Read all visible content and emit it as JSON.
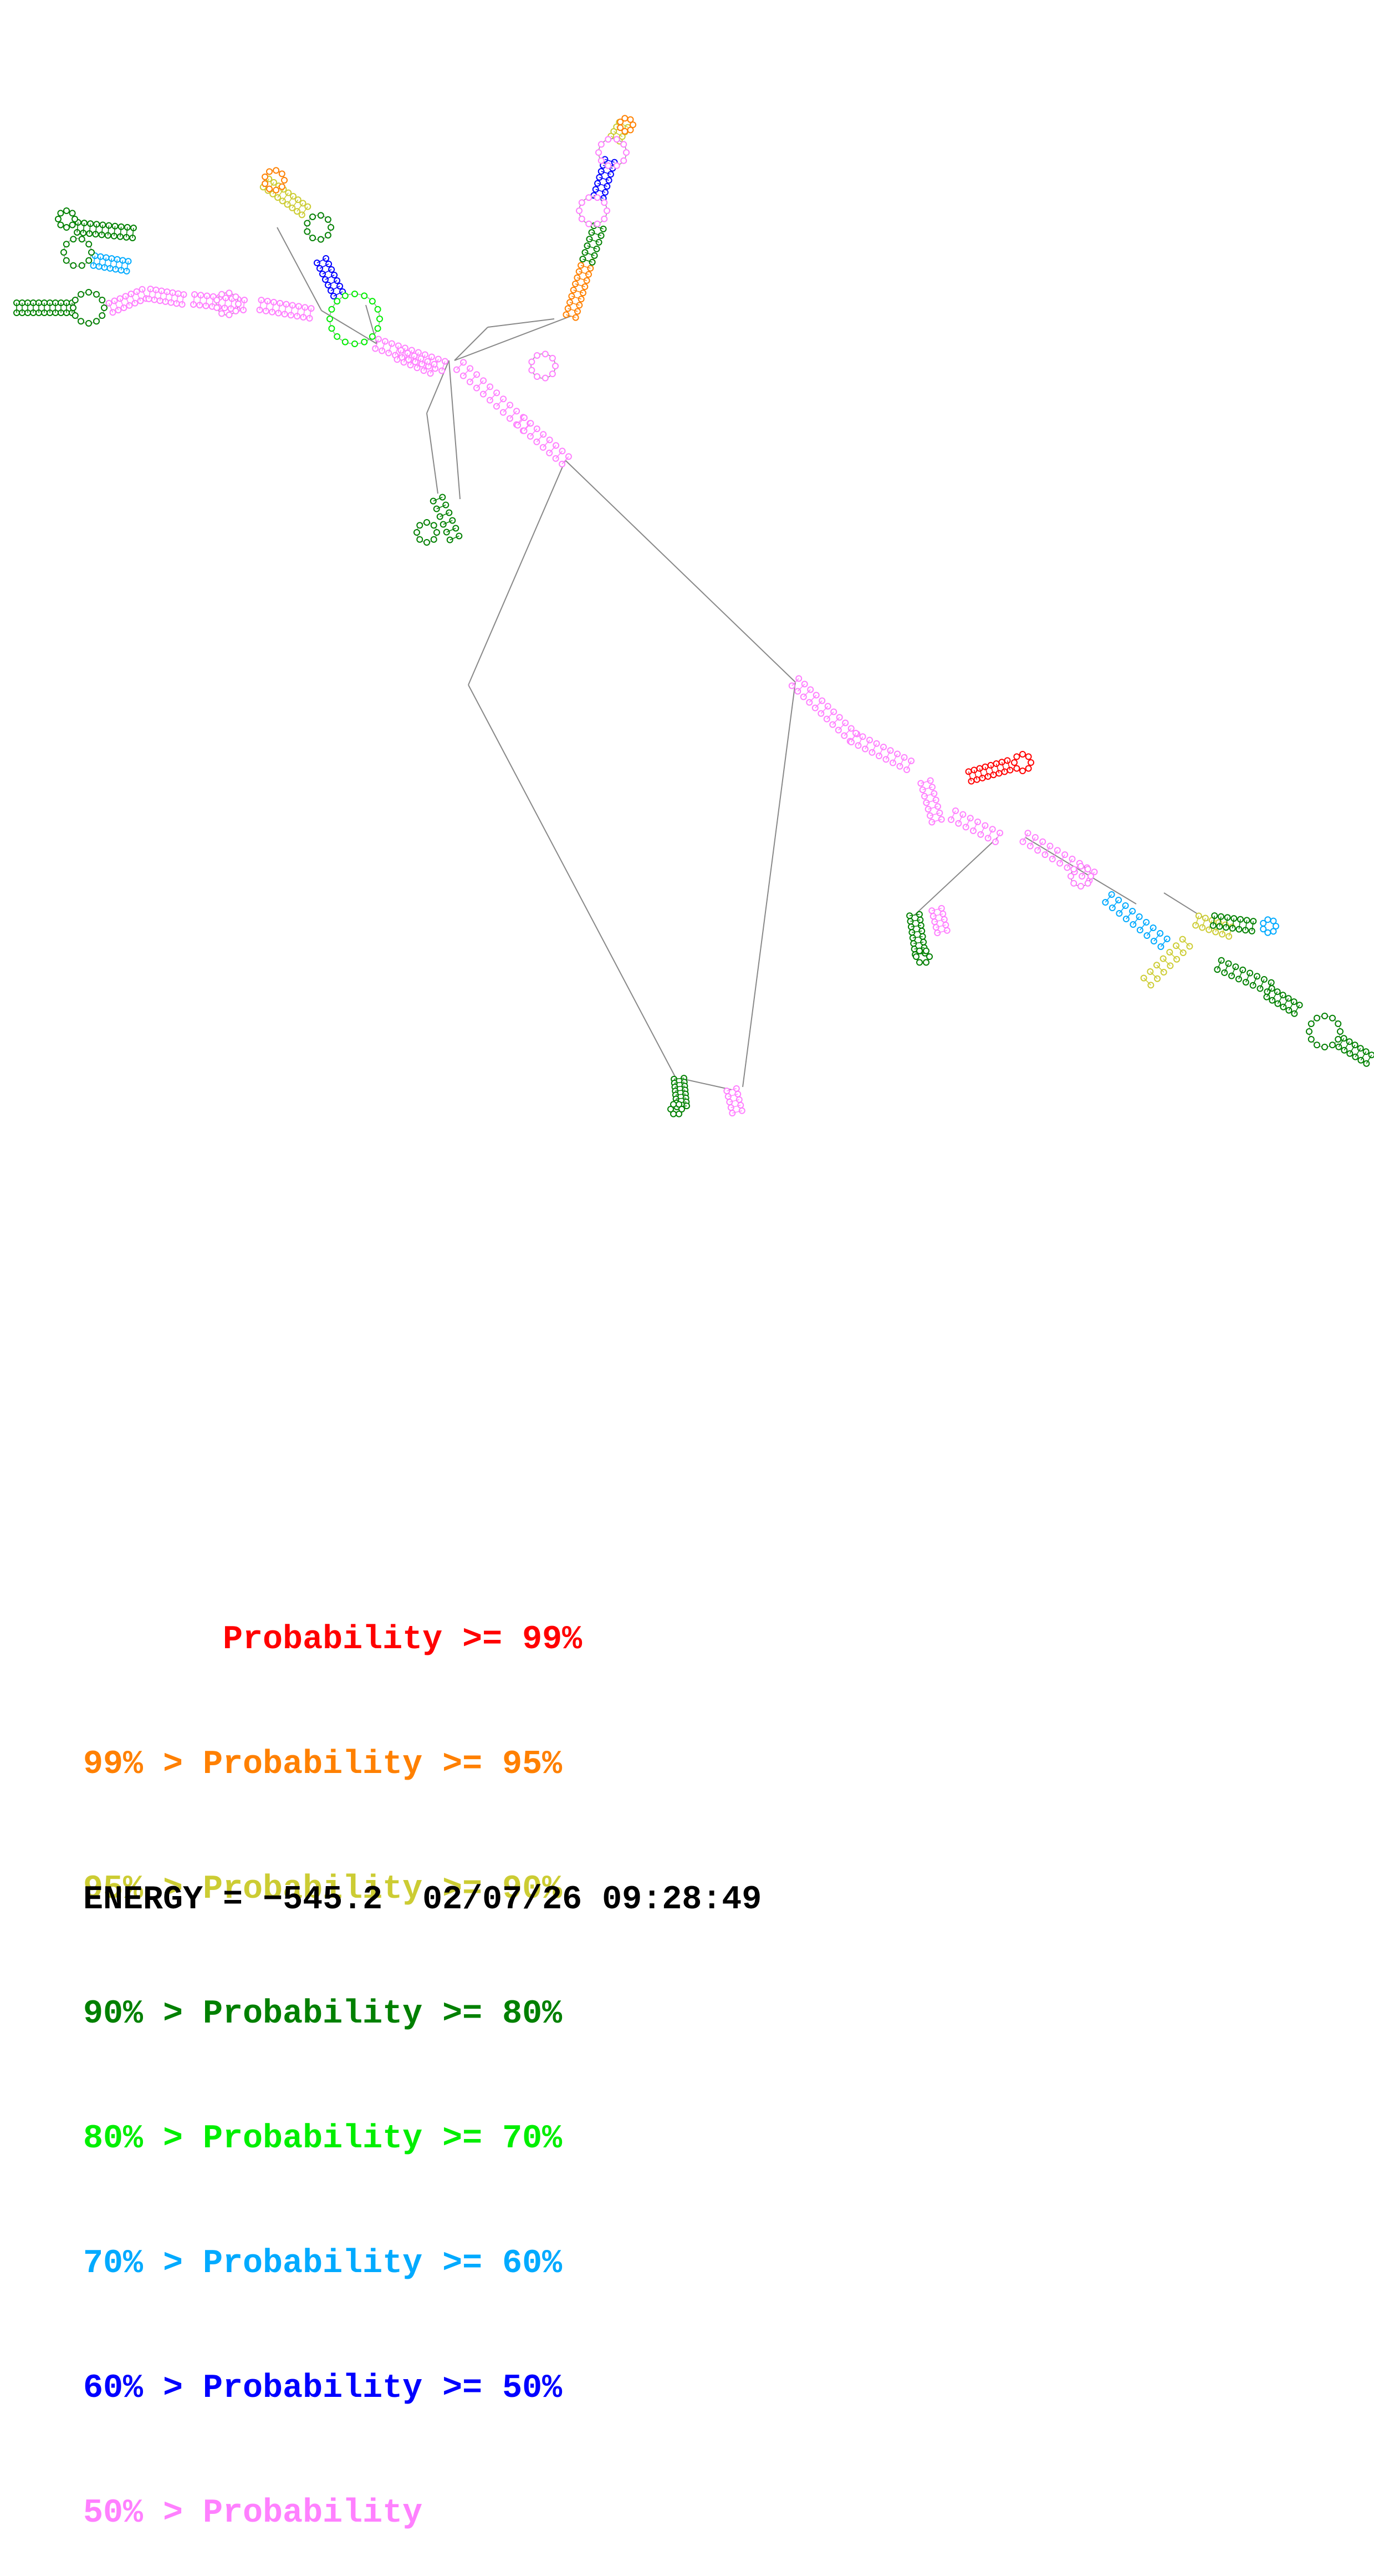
{
  "legend": [
    {
      "text": "       Probability >= 99%",
      "color": "#ff0000"
    },
    {
      "text": "99% > Probability >= 95%",
      "color": "#ff8000"
    },
    {
      "text": "95% > Probability >= 90%",
      "color": "#cccc33"
    },
    {
      "text": "90% > Probability >= 80%",
      "color": "#008000"
    },
    {
      "text": "80% > Probability >= 70%",
      "color": "#00ee00"
    },
    {
      "text": "70% > Probability >= 60%",
      "color": "#00aaff"
    },
    {
      "text": "60% > Probability >= 50%",
      "color": "#0000ff"
    },
    {
      "text": "50% > Probability",
      "color": "#ff80ff"
    }
  ],
  "footer": {
    "energy_label": "ENERGY = ",
    "energy_value": "−545.2",
    "timestamp": "02/07/26 09:28:49"
  },
  "colors": {
    "backbone": "#888888",
    "p99": "#ff0000",
    "p95": "#ff8000",
    "p90": "#cccc33",
    "p80": "#008000",
    "p70": "#00ee00",
    "p60": "#00aaff",
    "p50": "#0000ff",
    "plt50": "#ff80ff"
  }
}
